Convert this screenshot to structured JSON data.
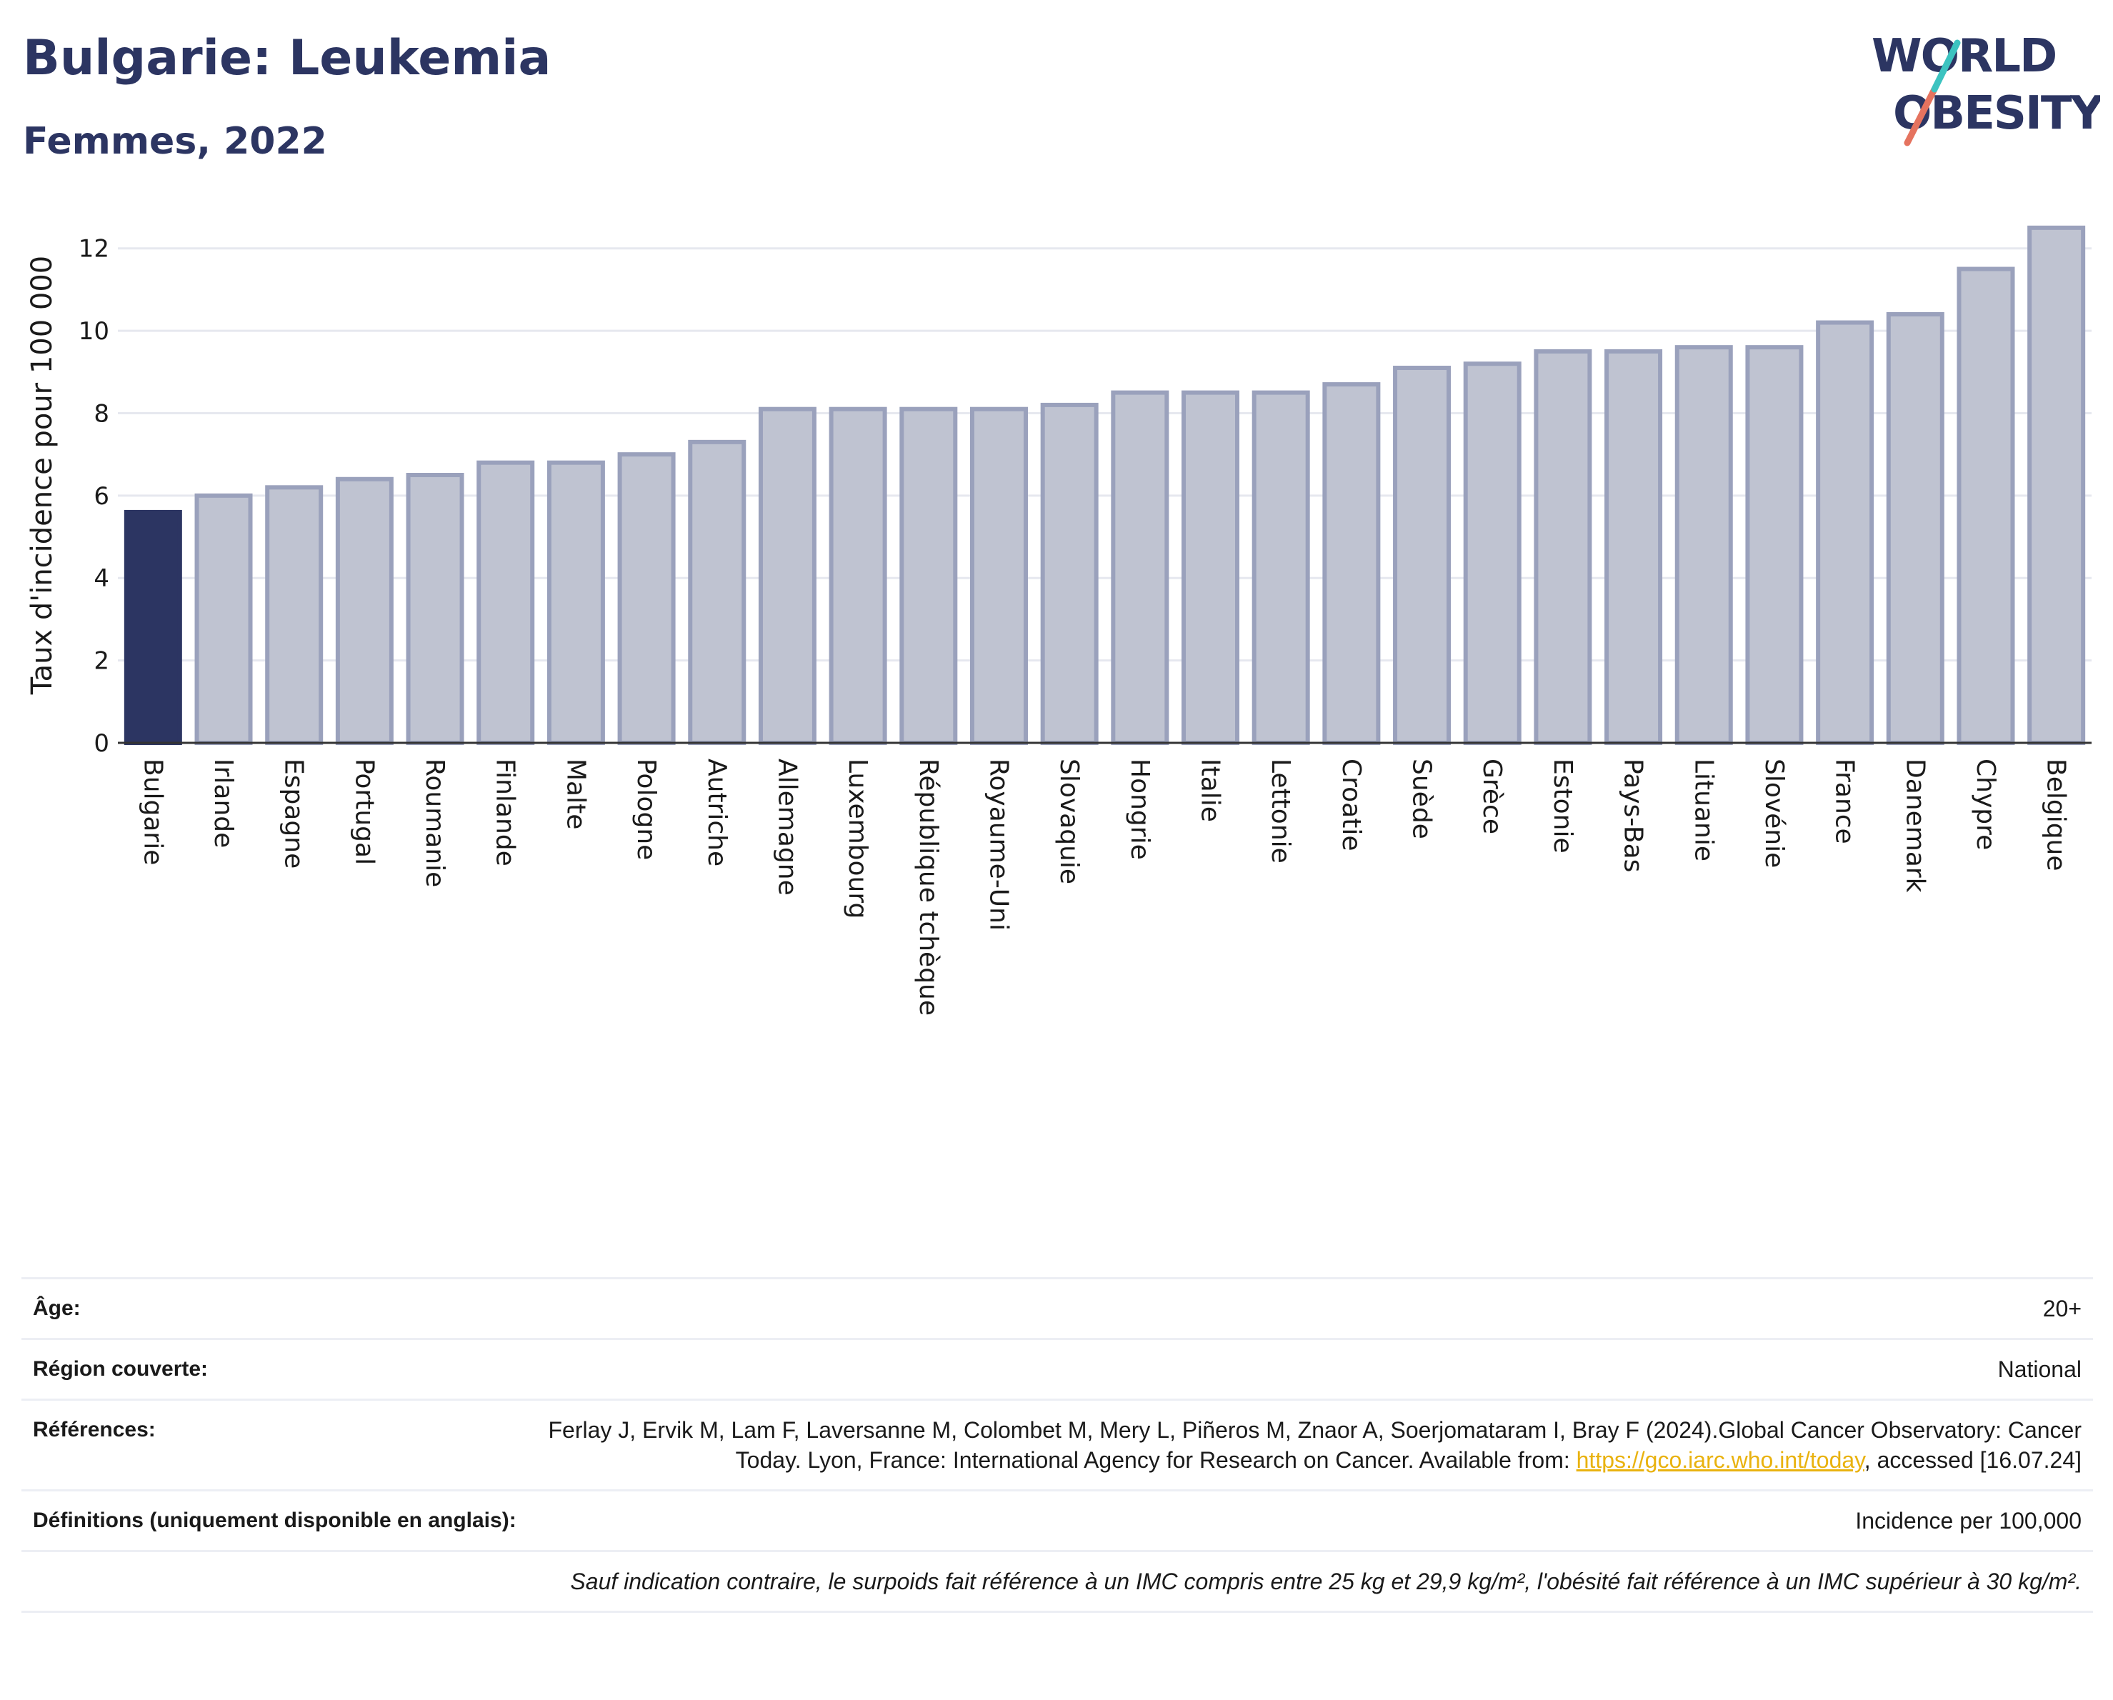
{
  "header": {
    "title": "Bulgarie: Leukemia",
    "subtitle": "Femmes, 2022"
  },
  "logo": {
    "line1": "WORLD",
    "line2": "OBESITY",
    "colors": [
      "#2c3562",
      "#e5735f",
      "#3cc3c0"
    ]
  },
  "chart_data": {
    "type": "bar",
    "ylabel": "Taux d'incidence pour 100 000",
    "xlabel": "",
    "ylim": [
      0,
      13
    ],
    "yticks": [
      0,
      2,
      4,
      6,
      8,
      10,
      12
    ],
    "grid": true,
    "highlight": "Bulgarie",
    "colors": {
      "highlight": "#2c3562",
      "bar": "#bfc3d1",
      "bar_edge": "#9aa1bc"
    },
    "categories": [
      "Bulgarie",
      "Irlande",
      "Espagne",
      "Portugal",
      "Roumanie",
      "Finlande",
      "Malte",
      "Pologne",
      "Autriche",
      "Allemagne",
      "Luxembourg",
      "République tchèque",
      "Royaume-Uni",
      "Slovaquie",
      "Hongrie",
      "Italie",
      "Lettonie",
      "Croatie",
      "Suède",
      "Grèce",
      "Estonie",
      "Pays-Bas",
      "Lituanie",
      "Slovénie",
      "France",
      "Danemark",
      "Chypre",
      "Belgique"
    ],
    "values": [
      5.6,
      6.0,
      6.2,
      6.4,
      6.5,
      6.8,
      6.8,
      7.0,
      7.3,
      8.1,
      8.1,
      8.1,
      8.1,
      8.2,
      8.5,
      8.5,
      8.5,
      8.7,
      9.1,
      9.2,
      9.5,
      9.5,
      9.6,
      9.6,
      10.2,
      10.4,
      11.5,
      12.5
    ]
  },
  "meta": {
    "age_label": "Âge:",
    "age_value": "20+",
    "region_label": "Région couverte:",
    "region_value": "National",
    "ref_label": "Références:",
    "ref_text": "Ferlay J, Ervik M, Lam F, Laversanne M, Colombet M, Mery L, Piñeros M, Znaor A, Soerjomataram I, Bray F (2024).Global Cancer Observatory: Cancer Today. Lyon, France: International Agency for Research on Cancer. Available from: ",
    "ref_link": "https://gco.iarc.who.int/today",
    "ref_tail": ", accessed [16.07.24]",
    "def_label": "Définitions (uniquement disponible en anglais):",
    "def_value": "Incidence per 100,000",
    "note": "Sauf indication contraire, le surpoids fait référence à un IMC compris entre 25 kg et 29,9 kg/m², l'obésité fait référence à un IMC supérieur à 30 kg/m²."
  }
}
